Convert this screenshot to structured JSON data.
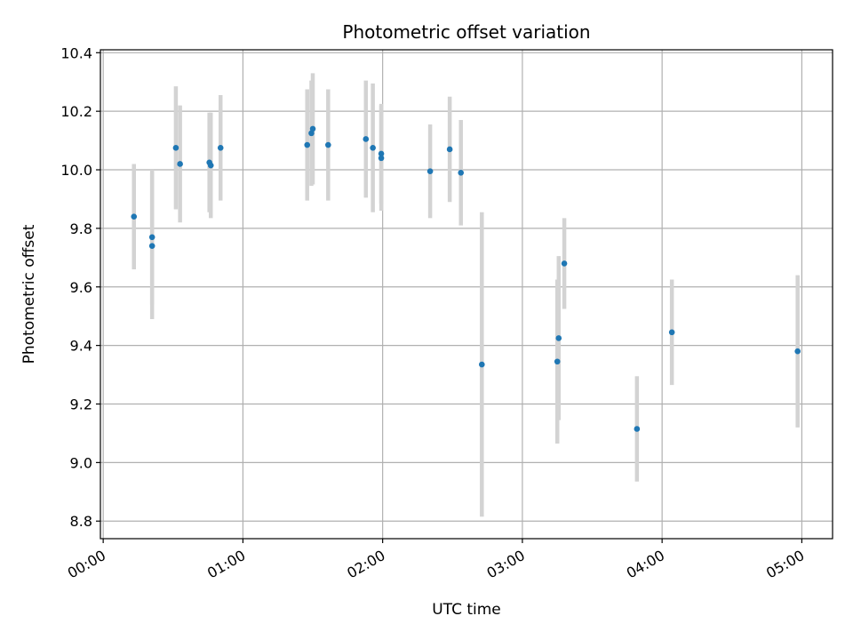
{
  "chart_data": {
    "type": "scatter",
    "title": "Photometric offset variation",
    "xlabel": "UTC time",
    "ylabel": "Photometric offset",
    "x_unit": "hours",
    "xlim": [
      -0.02,
      5.22
    ],
    "ylim": [
      8.74,
      10.41
    ],
    "x_ticks": [
      0,
      1,
      2,
      3,
      4,
      5
    ],
    "x_tick_labels": [
      "00:00",
      "01:00",
      "02:00",
      "03:00",
      "04:00",
      "05:00"
    ],
    "y_ticks": [
      8.8,
      9.0,
      9.2,
      9.4,
      9.6,
      9.8,
      10.0,
      10.2,
      10.4
    ],
    "y_tick_labels": [
      "8.8",
      "9.0",
      "9.2",
      "9.4",
      "9.6",
      "9.8",
      "10.0",
      "10.2",
      "10.4"
    ],
    "grid": true,
    "marker_color": "#1f77b4",
    "errorbar_color": "#d3d3d3",
    "points": [
      {
        "x": 0.22,
        "y": 9.84,
        "err": 0.18
      },
      {
        "x": 0.35,
        "y": 9.74,
        "err": 0.25
      },
      {
        "x": 0.35,
        "y": 9.77,
        "err": 0.23
      },
      {
        "x": 0.52,
        "y": 10.075,
        "err": 0.21
      },
      {
        "x": 0.55,
        "y": 10.02,
        "err": 0.2
      },
      {
        "x": 0.76,
        "y": 10.025,
        "err": 0.17
      },
      {
        "x": 0.77,
        "y": 10.015,
        "err": 0.18
      },
      {
        "x": 0.84,
        "y": 10.075,
        "err": 0.18
      },
      {
        "x": 1.46,
        "y": 10.085,
        "err": 0.19
      },
      {
        "x": 1.49,
        "y": 10.125,
        "err": 0.18
      },
      {
        "x": 1.5,
        "y": 10.14,
        "err": 0.19
      },
      {
        "x": 1.61,
        "y": 10.085,
        "err": 0.19
      },
      {
        "x": 1.88,
        "y": 10.105,
        "err": 0.2
      },
      {
        "x": 1.93,
        "y": 10.075,
        "err": 0.22
      },
      {
        "x": 1.99,
        "y": 10.055,
        "err": 0.17
      },
      {
        "x": 1.99,
        "y": 10.04,
        "err": 0.18
      },
      {
        "x": 2.34,
        "y": 9.995,
        "err": 0.16
      },
      {
        "x": 2.48,
        "y": 10.07,
        "err": 0.18
      },
      {
        "x": 2.56,
        "y": 9.99,
        "err": 0.18
      },
      {
        "x": 2.71,
        "y": 9.335,
        "err": 0.52
      },
      {
        "x": 3.25,
        "y": 9.345,
        "err": 0.28
      },
      {
        "x": 3.26,
        "y": 9.425,
        "err": 0.28
      },
      {
        "x": 3.3,
        "y": 9.68,
        "err": 0.155
      },
      {
        "x": 3.82,
        "y": 9.115,
        "err": 0.18
      },
      {
        "x": 4.07,
        "y": 9.445,
        "err": 0.18
      },
      {
        "x": 4.97,
        "y": 9.38,
        "err": 0.26
      }
    ]
  }
}
